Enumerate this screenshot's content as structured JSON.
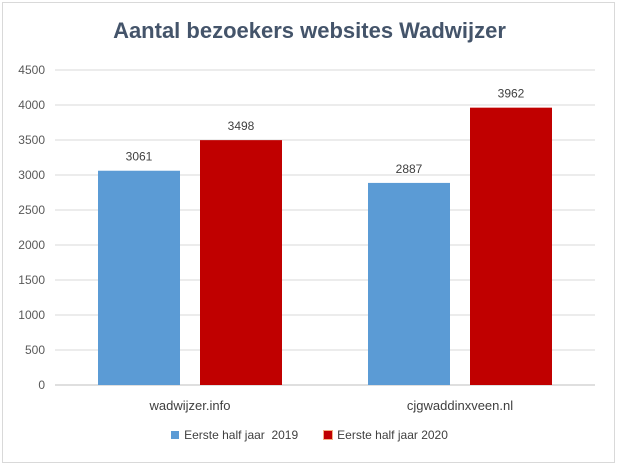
{
  "chart_data": {
    "type": "bar",
    "title": "Aantal bezoekers websites Wadwijzer",
    "categories": [
      "wadwijzer.info",
      "cjgwaddinxveen.nl"
    ],
    "series": [
      {
        "name": "Eerste half jaar  2019",
        "values": [
          3061,
          2887
        ],
        "color": "#5b9bd5"
      },
      {
        "name": "Eerste half jaar 2020",
        "values": [
          3498,
          3962
        ],
        "color": "#c00000"
      }
    ],
    "ylim": [
      0,
      4500
    ],
    "yticks": [
      0,
      500,
      1000,
      1500,
      2000,
      2500,
      3000,
      3500,
      4000,
      4500
    ],
    "grid": true,
    "legend": "bottom"
  }
}
